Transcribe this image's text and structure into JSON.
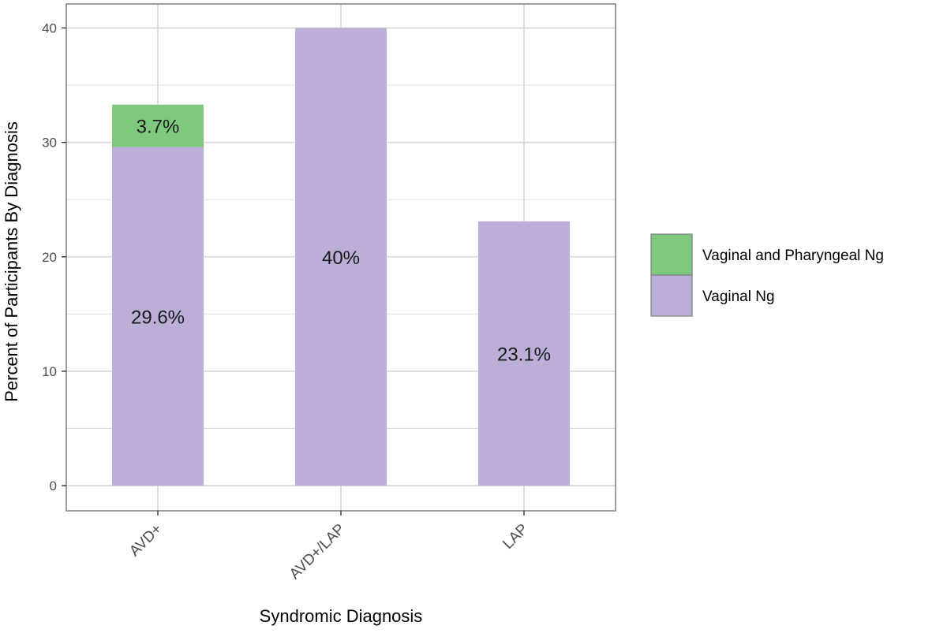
{
  "chart_data": {
    "type": "bar",
    "stacked": true,
    "categories": [
      "AVD+",
      "AVD+/LAP",
      "LAP"
    ],
    "series": [
      {
        "name": "Vaginal Ng",
        "values": [
          29.6,
          40,
          23.1
        ],
        "labels": [
          "29.6%",
          "40%",
          "23.1%"
        ],
        "color": "#bcaed6"
      },
      {
        "name": "Vaginal and Pharyngeal Ng",
        "values": [
          3.7,
          0,
          0
        ],
        "labels": [
          "3.7%",
          "",
          ""
        ],
        "color": "#7fc97f"
      }
    ],
    "xlabel": "Syndromic Diagnosis",
    "ylabel": "Percent of Participants By Diagnosis",
    "ylim": [
      -2.2,
      42.1
    ],
    "yticks": [
      0,
      10,
      20,
      30,
      40
    ],
    "grid": true,
    "legend": {
      "placement": "right",
      "order": [
        "Vaginal and Pharyngeal Ng",
        "Vaginal Ng"
      ]
    },
    "colors": {
      "grid": "#d9d9d9",
      "panel_border": "#7f7f7f",
      "tick_text": "#4d4d4d"
    }
  }
}
